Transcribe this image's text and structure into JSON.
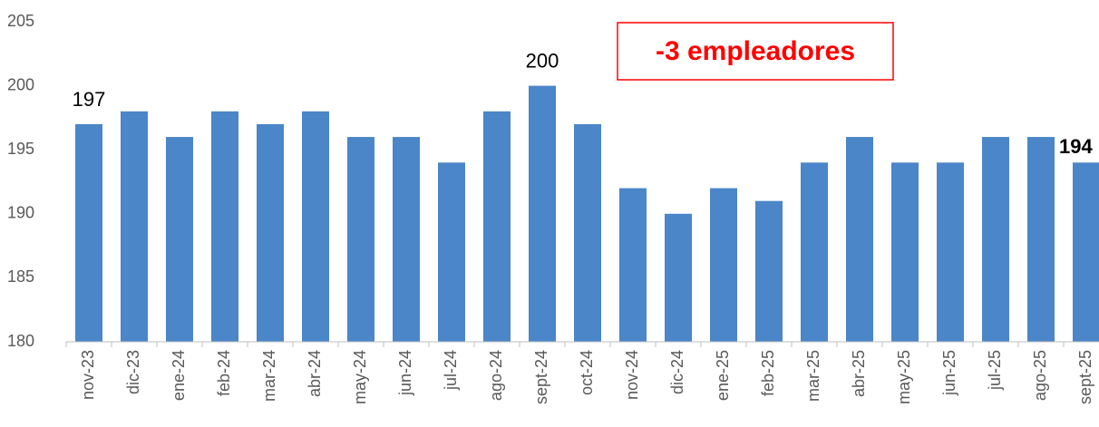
{
  "chart_data": {
    "type": "bar",
    "categories": [
      "nov-23",
      "dic-23",
      "ene-24",
      "feb-24",
      "mar-24",
      "abr-24",
      "may-24",
      "jun-24",
      "jul-24",
      "ago-24",
      "sept-24",
      "oct-24",
      "nov-24",
      "dic-24",
      "ene-25",
      "feb-25",
      "mar-25",
      "abr-25",
      "may-25",
      "jun-25",
      "jul-25",
      "ago-25",
      "sept-25"
    ],
    "values": [
      197,
      198,
      196,
      198,
      197,
      198,
      196,
      196,
      194,
      198,
      200,
      197,
      192,
      190,
      192,
      191,
      194,
      196,
      194,
      194,
      196,
      196,
      194
    ],
    "value_labels": [
      "197",
      null,
      null,
      null,
      null,
      null,
      null,
      null,
      null,
      null,
      "200",
      null,
      null,
      null,
      null,
      null,
      null,
      null,
      null,
      null,
      null,
      null,
      "194"
    ],
    "color": "#4a86c8",
    "ylim": [
      180,
      205
    ],
    "yticks": [
      180,
      185,
      190,
      195,
      200,
      205
    ],
    "grid": false,
    "annotation": "-3 empleadores"
  }
}
